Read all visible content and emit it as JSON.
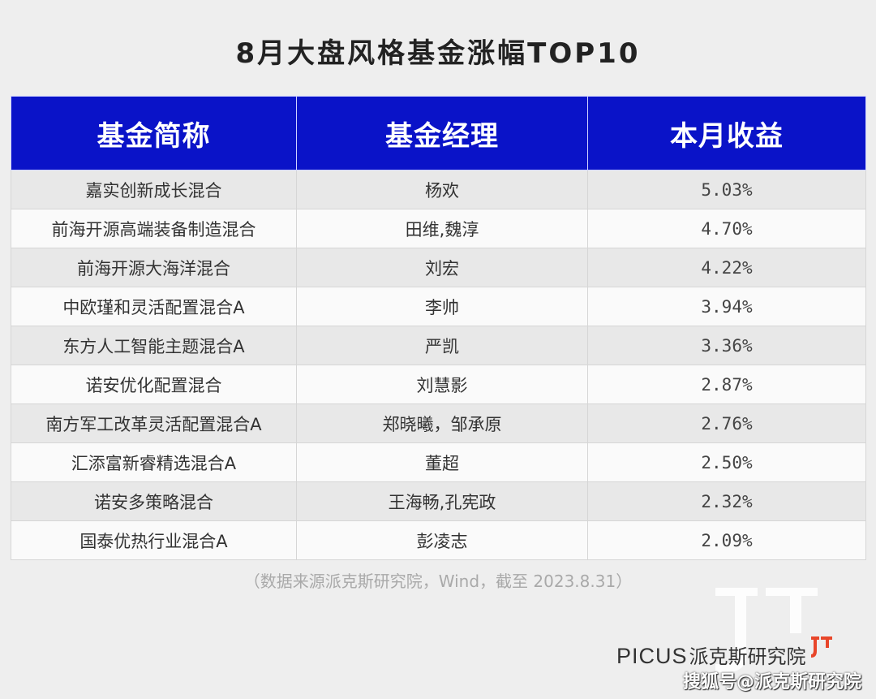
{
  "title": "8月大盘风格基金涨幅TOP10",
  "table": {
    "headers": [
      "基金简称",
      "基金经理",
      "本月收益"
    ],
    "rows": [
      {
        "name": "嘉实创新成长混合",
        "manager": "杨欢",
        "return": "5.03%"
      },
      {
        "name": "前海开源高端装备制造混合",
        "manager": "田维,魏淳",
        "return": "4.70%"
      },
      {
        "name": "前海开源大海洋混合",
        "manager": "刘宏",
        "return": "4.22%"
      },
      {
        "name": "中欧瑾和灵活配置混合A",
        "manager": "李帅",
        "return": "3.94%"
      },
      {
        "name": "东方人工智能主题混合A",
        "manager": "严凯",
        "return": "3.36%"
      },
      {
        "name": "诺安优化配置混合",
        "manager": "刘慧影",
        "return": "2.87%"
      },
      {
        "name": "南方军工改革灵活配置混合A",
        "manager": "郑晓曦，邹承原",
        "return": "2.76%"
      },
      {
        "name": "汇添富新睿精选混合A",
        "manager": "董超",
        "return": "2.50%"
      },
      {
        "name": "诺安多策略混合",
        "manager": "王海畅,孔宪政",
        "return": "2.32%"
      },
      {
        "name": "国泰优热行业混合A",
        "manager": "彭凌志",
        "return": "2.09%"
      }
    ]
  },
  "source": "（数据来源派克斯研究院，Wind，截至 2023.8.31）",
  "brand": {
    "latin": "PICUS",
    "chinese": "派克斯研究院",
    "mark_icon": "picus-logo-icon",
    "accent_color": "#e8462a"
  },
  "watermark": "搜狐号@派克斯研究院",
  "colors": {
    "header_bg": "#0a13c8",
    "background": "#eeeeee"
  }
}
